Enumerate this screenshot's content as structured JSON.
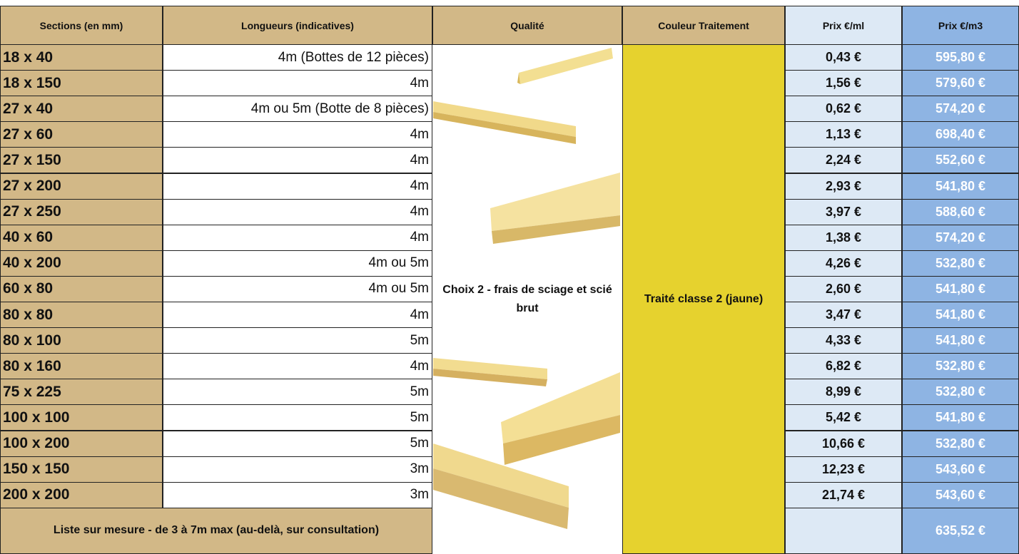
{
  "header": [
    "Sections (en mm)",
    "Longueurs   (indicatives)",
    "Qualité",
    "Couleur Traitement",
    "Prix €/ml",
    "Prix €/m3"
  ],
  "rows": [
    [
      "18 x 40",
      "4m (Bottes de 12 pièces)",
      "0,43 €",
      "595,80 €"
    ],
    [
      "18 x 150",
      "4m",
      "1,56 €",
      "579,60 €"
    ],
    [
      "27 x 40",
      "4m ou  5m (Botte de 8 pièces)",
      "0,62 €",
      "574,20 €"
    ],
    [
      "27  x 60",
      "4m",
      "1,13 €",
      "698,40 €"
    ],
    [
      "27 x 150",
      "4m",
      "2,24 €",
      "552,60 €"
    ],
    [
      "27 x 200",
      "4m",
      "2,93 €",
      "541,80 €"
    ],
    [
      "27 x 250",
      "4m",
      "3,97 €",
      "588,60 €"
    ],
    [
      "40 x 60",
      "4m",
      "1,38 €",
      "574,20 €"
    ],
    [
      "40 x 200",
      "4m ou 5m",
      "4,26 €",
      "532,80 €"
    ],
    [
      "60 x 80",
      "4m ou 5m",
      "2,60 €",
      "541,80 €"
    ],
    [
      "80 x 80",
      "4m",
      "3,47 €",
      "541,80 €"
    ],
    [
      "80 x 100",
      "5m",
      "4,33 €",
      "541,80 €"
    ],
    [
      "80 x 160",
      "4m",
      "6,82 €",
      "532,80 €"
    ],
    [
      "75 x 225",
      "5m",
      "8,99 €",
      "532,80 €"
    ],
    [
      "100 x 100",
      "5m",
      "5,42 €",
      "541,80 €"
    ],
    [
      "100 x 200",
      "5m",
      "10,66 €",
      "532,80 €"
    ],
    [
      "150 x 150",
      "3m",
      "12,23 €",
      "543,60 €"
    ],
    [
      "200 x 200",
      "3m",
      "21,74 €",
      "543,60 €"
    ]
  ],
  "quality": "Choix 2 - frais de sciage et scié brut",
  "treatment": "Traité classe 2 (jaune)",
  "footer": {
    "text": "Liste sur mesure - de 3 à 7m max (au-delà, sur consultation)",
    "price_m3": "635,52 €"
  }
}
